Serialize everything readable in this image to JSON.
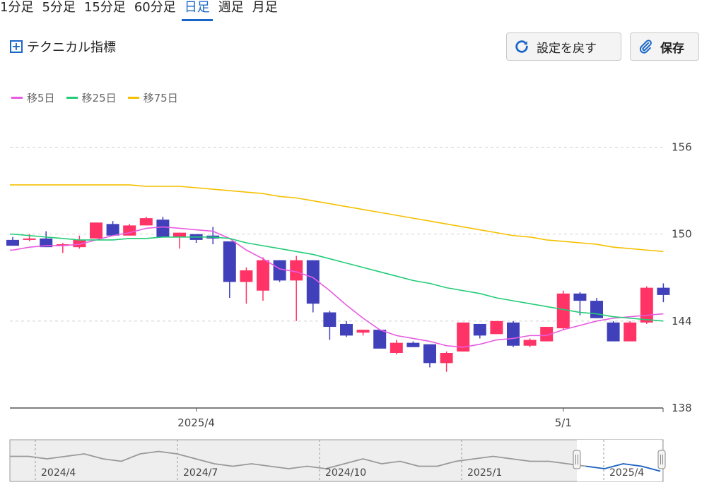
{
  "tabs": [
    {
      "label": "1分足",
      "active": false
    },
    {
      "label": "5分足",
      "active": false
    },
    {
      "label": "15分足",
      "active": false
    },
    {
      "label": "60分足",
      "active": false
    },
    {
      "label": "日足",
      "active": true
    },
    {
      "label": "週足",
      "active": false
    },
    {
      "label": "月足",
      "active": false
    }
  ],
  "toolbar": {
    "technical_label": "テクニカル指標",
    "reset_label": "設定を戻す",
    "save_label": "保存"
  },
  "colors": {
    "accent": "#1a66c8",
    "up": "#ff3366",
    "down": "#4040bb",
    "ma5": "#e85be0",
    "ma25": "#22cc77",
    "ma75": "#f5c000"
  },
  "legend": [
    {
      "label": "移5日",
      "color": "#e85be0"
    },
    {
      "label": "移25日",
      "color": "#22cc77"
    },
    {
      "label": "移75日",
      "color": "#f5c000"
    }
  ],
  "chart_data": {
    "type": "candlestick",
    "ylim": [
      138,
      157
    ],
    "yticks": [
      156,
      150,
      144,
      138
    ],
    "grid": true,
    "xticks": [
      {
        "index": 11,
        "label": "2025/4"
      },
      {
        "index": 33,
        "label": "5/1"
      }
    ],
    "candles": [
      {
        "o": 149.6,
        "h": 149.8,
        "l": 149.2,
        "c": 149.2
      },
      {
        "o": 149.6,
        "h": 150.0,
        "l": 149.5,
        "c": 149.7
      },
      {
        "o": 149.7,
        "h": 150.2,
        "l": 149.1,
        "c": 149.1
      },
      {
        "o": 149.2,
        "h": 149.4,
        "l": 148.7,
        "c": 149.3
      },
      {
        "o": 149.1,
        "h": 149.9,
        "l": 149.0,
        "c": 149.6
      },
      {
        "o": 149.7,
        "h": 150.8,
        "l": 149.7,
        "c": 150.8
      },
      {
        "o": 150.7,
        "h": 150.9,
        "l": 149.9,
        "c": 149.9
      },
      {
        "o": 149.9,
        "h": 150.7,
        "l": 149.9,
        "c": 150.6
      },
      {
        "o": 150.6,
        "h": 151.2,
        "l": 150.6,
        "c": 151.1
      },
      {
        "o": 151.0,
        "h": 151.2,
        "l": 149.8,
        "c": 149.8
      },
      {
        "o": 149.8,
        "h": 150.1,
        "l": 149.0,
        "c": 150.1
      },
      {
        "o": 150.0,
        "h": 150.0,
        "l": 149.4,
        "c": 149.6
      },
      {
        "o": 149.9,
        "h": 150.5,
        "l": 149.3,
        "c": 149.7
      },
      {
        "o": 149.5,
        "h": 149.5,
        "l": 145.6,
        "c": 146.7
      },
      {
        "o": 146.7,
        "h": 147.7,
        "l": 145.2,
        "c": 147.5
      },
      {
        "o": 146.1,
        "h": 148.4,
        "l": 145.4,
        "c": 148.2
      },
      {
        "o": 148.2,
        "h": 148.2,
        "l": 146.7,
        "c": 146.8
      },
      {
        "o": 146.8,
        "h": 148.5,
        "l": 144.0,
        "c": 148.2
      },
      {
        "o": 148.2,
        "h": 148.2,
        "l": 144.6,
        "c": 145.2
      },
      {
        "o": 144.6,
        "h": 144.7,
        "l": 142.7,
        "c": 143.6
      },
      {
        "o": 143.8,
        "h": 144.0,
        "l": 142.9,
        "c": 143.0
      },
      {
        "o": 143.2,
        "h": 143.4,
        "l": 143.0,
        "c": 143.4
      },
      {
        "o": 143.4,
        "h": 143.4,
        "l": 142.2,
        "c": 142.1
      },
      {
        "o": 141.8,
        "h": 142.7,
        "l": 141.7,
        "c": 142.5
      },
      {
        "o": 142.5,
        "h": 142.6,
        "l": 142.2,
        "c": 142.2
      },
      {
        "o": 142.4,
        "h": 142.4,
        "l": 140.8,
        "c": 141.1
      },
      {
        "o": 141.1,
        "h": 141.9,
        "l": 140.5,
        "c": 141.8
      },
      {
        "o": 141.9,
        "h": 143.9,
        "l": 141.9,
        "c": 143.9
      },
      {
        "o": 143.8,
        "h": 143.8,
        "l": 142.8,
        "c": 143.0
      },
      {
        "o": 143.1,
        "h": 144.0,
        "l": 143.1,
        "c": 144.0
      },
      {
        "o": 143.9,
        "h": 144.0,
        "l": 142.2,
        "c": 142.3
      },
      {
        "o": 142.3,
        "h": 142.8,
        "l": 142.2,
        "c": 142.7
      },
      {
        "o": 142.6,
        "h": 143.6,
        "l": 142.6,
        "c": 143.6
      },
      {
        "o": 143.5,
        "h": 146.1,
        "l": 143.4,
        "c": 145.9
      },
      {
        "o": 145.9,
        "h": 146.0,
        "l": 144.4,
        "c": 145.4
      },
      {
        "o": 145.4,
        "h": 145.6,
        "l": 144.2,
        "c": 144.2
      },
      {
        "o": 143.9,
        "h": 144.0,
        "l": 142.6,
        "c": 142.6
      },
      {
        "o": 142.6,
        "h": 144.0,
        "l": 142.6,
        "c": 143.9
      },
      {
        "o": 143.9,
        "h": 146.4,
        "l": 143.8,
        "c": 146.3
      },
      {
        "o": 146.3,
        "h": 146.6,
        "l": 145.3,
        "c": 145.8
      }
    ],
    "series": [
      {
        "values": [
          148.9,
          149.1,
          149.2,
          149.2,
          149.3,
          149.6,
          149.9,
          150.1,
          150.4,
          150.5,
          150.4,
          150.3,
          150.2,
          149.7,
          148.9,
          148.3,
          147.6,
          147.4,
          147.0,
          146.1,
          145.1,
          144.2,
          143.4,
          143.0,
          142.8,
          142.6,
          142.3,
          142.2,
          142.4,
          142.7,
          142.8,
          143.0,
          143.0,
          143.4,
          143.7,
          144.0,
          144.2,
          144.3,
          144.4,
          144.5
        ]
      },
      {
        "values": [
          150.0,
          149.9,
          149.8,
          149.7,
          149.6,
          149.6,
          149.6,
          149.7,
          149.7,
          149.8,
          149.8,
          149.8,
          149.8,
          149.7,
          149.4,
          149.2,
          149.0,
          148.8,
          148.6,
          148.3,
          148.0,
          147.7,
          147.4,
          147.1,
          146.8,
          146.6,
          146.3,
          146.1,
          145.9,
          145.6,
          145.4,
          145.2,
          145.0,
          144.8,
          144.6,
          144.5,
          144.3,
          144.2,
          144.1,
          144.0
        ]
      },
      {
        "values": [
          153.4,
          153.4,
          153.4,
          153.4,
          153.4,
          153.4,
          153.4,
          153.4,
          153.3,
          153.3,
          153.3,
          153.2,
          153.1,
          153.0,
          152.9,
          152.8,
          152.6,
          152.5,
          152.3,
          152.1,
          151.9,
          151.7,
          151.5,
          151.3,
          151.1,
          150.9,
          150.7,
          150.5,
          150.3,
          150.1,
          149.9,
          149.8,
          149.6,
          149.5,
          149.4,
          149.3,
          149.1,
          149.0,
          148.9,
          148.8
        ]
      }
    ]
  },
  "navigator": {
    "labels": [
      "2024/4",
      "2024/7",
      "2024/10",
      "2025/1",
      "2025/4"
    ],
    "values": [
      151,
      151,
      150,
      151,
      152,
      150,
      149,
      152,
      153,
      152,
      150,
      148,
      147,
      148,
      147,
      146,
      147,
      146,
      148,
      150,
      148,
      149,
      147,
      147,
      149,
      150,
      151,
      150,
      149,
      149,
      148,
      147,
      146,
      148,
      147,
      145
    ]
  }
}
